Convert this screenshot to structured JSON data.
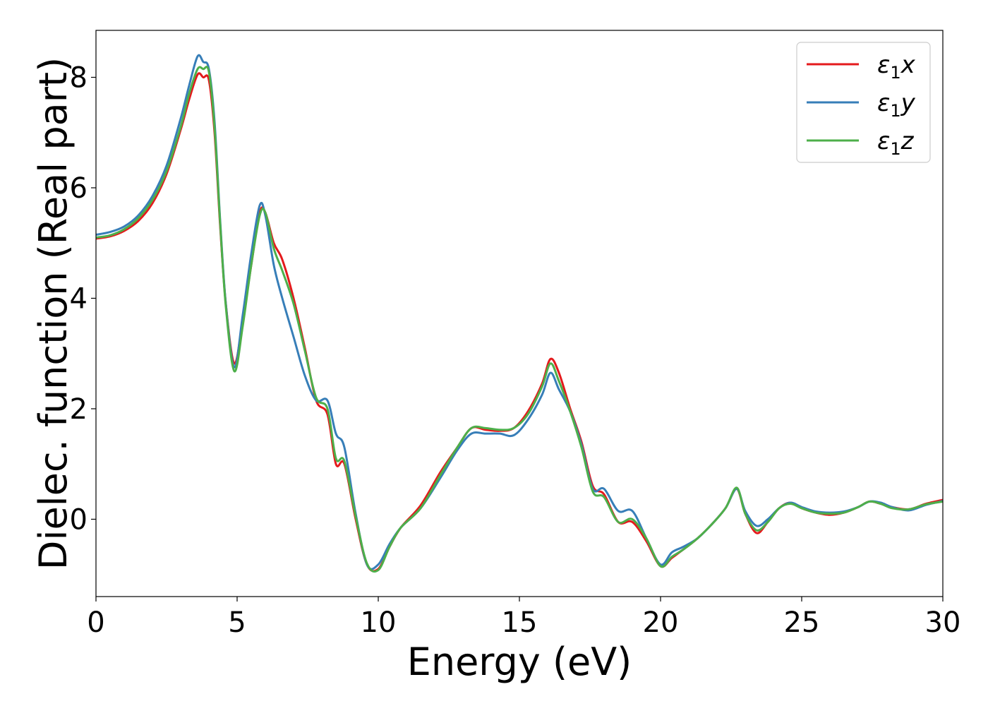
{
  "chart_data": {
    "type": "line",
    "title": "",
    "xlabel": "Energy (eV)",
    "ylabel": "Dielec. function (Real part)",
    "xlim": [
      0,
      30
    ],
    "ylim": [
      -1.4,
      8.85
    ],
    "xticks": [
      0,
      5,
      10,
      15,
      20,
      25,
      30
    ],
    "yticks": [
      0,
      2,
      4,
      6,
      8
    ],
    "grid": false,
    "legend_position": "top-right",
    "series": [
      {
        "name": "ε₁x",
        "label_main": "ε",
        "label_sub": "1",
        "label_var": "x",
        "color": "#e41a1c",
        "x": [
          0,
          0.5,
          1,
          1.5,
          2,
          2.5,
          3,
          3.3,
          3.6,
          3.8,
          4.0,
          4.2,
          4.4,
          4.6,
          4.9,
          5.2,
          5.5,
          5.8,
          6.0,
          6.3,
          6.6,
          7.0,
          7.4,
          7.8,
          8.2,
          8.5,
          8.8,
          9.2,
          9.6,
          10.0,
          10.4,
          10.8,
          11.5,
          12.2,
          12.8,
          13.3,
          13.8,
          14.3,
          14.8,
          15.3,
          15.8,
          16.1,
          16.4,
          16.8,
          17.2,
          17.6,
          18.0,
          18.5,
          19.0,
          19.5,
          20.0,
          20.4,
          20.8,
          21.3,
          21.8,
          22.3,
          22.7,
          23.0,
          23.4,
          23.8,
          24.2,
          24.6,
          25.0,
          25.5,
          26.0,
          26.5,
          27.0,
          27.4,
          27.8,
          28.2,
          28.8,
          29.4,
          30.0
        ],
        "values": [
          5.08,
          5.12,
          5.22,
          5.4,
          5.72,
          6.25,
          7.05,
          7.6,
          8.05,
          8.0,
          7.95,
          7.0,
          5.3,
          3.9,
          2.82,
          3.6,
          4.6,
          5.55,
          5.55,
          5.0,
          4.7,
          4.0,
          3.1,
          2.15,
          1.9,
          1.0,
          1.0,
          0.0,
          -0.82,
          -0.9,
          -0.5,
          -0.15,
          0.25,
          0.85,
          1.3,
          1.65,
          1.62,
          1.6,
          1.65,
          1.95,
          2.45,
          2.9,
          2.65,
          2.0,
          1.4,
          0.6,
          0.45,
          -0.05,
          -0.05,
          -0.4,
          -0.85,
          -0.7,
          -0.55,
          -0.35,
          -0.1,
          0.2,
          0.55,
          0.1,
          -0.25,
          -0.05,
          0.2,
          0.3,
          0.2,
          0.12,
          0.08,
          0.12,
          0.22,
          0.32,
          0.28,
          0.22,
          0.18,
          0.28,
          0.35
        ]
      },
      {
        "name": "ε₁y",
        "label_main": "ε",
        "label_sub": "1",
        "label_var": "y",
        "color": "#377eb8",
        "x": [
          0,
          0.5,
          1,
          1.5,
          2,
          2.5,
          3,
          3.3,
          3.6,
          3.8,
          4.0,
          4.2,
          4.4,
          4.6,
          4.9,
          5.2,
          5.5,
          5.8,
          6.0,
          6.3,
          6.6,
          7.0,
          7.4,
          7.8,
          8.2,
          8.5,
          8.8,
          9.2,
          9.6,
          10.0,
          10.4,
          10.8,
          11.5,
          12.2,
          12.8,
          13.3,
          13.8,
          14.3,
          14.8,
          15.3,
          15.8,
          16.1,
          16.4,
          16.8,
          17.2,
          17.6,
          18.0,
          18.5,
          19.0,
          19.5,
          20.0,
          20.4,
          20.8,
          21.3,
          21.8,
          22.3,
          22.7,
          23.0,
          23.4,
          23.8,
          24.2,
          24.6,
          25.0,
          25.5,
          26.0,
          26.5,
          27.0,
          27.4,
          27.8,
          28.2,
          28.8,
          29.4,
          30.0
        ],
        "values": [
          5.15,
          5.2,
          5.3,
          5.5,
          5.85,
          6.4,
          7.25,
          7.85,
          8.38,
          8.28,
          8.15,
          7.2,
          5.4,
          3.9,
          2.75,
          3.7,
          4.8,
          5.68,
          5.5,
          4.6,
          4.0,
          3.3,
          2.6,
          2.15,
          2.15,
          1.55,
          1.3,
          0.1,
          -0.82,
          -0.82,
          -0.45,
          -0.15,
          0.2,
          0.75,
          1.25,
          1.55,
          1.55,
          1.55,
          1.52,
          1.8,
          2.25,
          2.65,
          2.35,
          1.95,
          1.35,
          0.55,
          0.55,
          0.15,
          0.15,
          -0.35,
          -0.82,
          -0.6,
          -0.5,
          -0.35,
          -0.1,
          0.2,
          0.55,
          0.15,
          -0.12,
          0.0,
          0.2,
          0.3,
          0.22,
          0.14,
          0.12,
          0.14,
          0.22,
          0.32,
          0.3,
          0.22,
          0.16,
          0.26,
          0.33
        ]
      },
      {
        "name": "ε₁z",
        "label_main": "ε",
        "label_sub": "1",
        "label_var": "z",
        "color": "#4daf4a",
        "x": [
          0,
          0.5,
          1,
          1.5,
          2,
          2.5,
          3,
          3.3,
          3.6,
          3.8,
          4.0,
          4.2,
          4.4,
          4.6,
          4.9,
          5.2,
          5.5,
          5.8,
          6.0,
          6.3,
          6.6,
          7.0,
          7.4,
          7.8,
          8.2,
          8.5,
          8.8,
          9.2,
          9.6,
          10.0,
          10.4,
          10.8,
          11.5,
          12.2,
          12.8,
          13.3,
          13.8,
          14.3,
          14.8,
          15.3,
          15.8,
          16.1,
          16.4,
          16.8,
          17.2,
          17.6,
          18.0,
          18.5,
          19.0,
          19.5,
          20.0,
          20.4,
          20.8,
          21.3,
          21.8,
          22.3,
          22.7,
          23.0,
          23.4,
          23.8,
          24.2,
          24.6,
          25.0,
          25.5,
          26.0,
          26.5,
          27.0,
          27.4,
          27.8,
          28.2,
          28.8,
          29.4,
          30.0
        ],
        "values": [
          5.1,
          5.14,
          5.25,
          5.45,
          5.78,
          6.3,
          7.1,
          7.7,
          8.15,
          8.15,
          8.1,
          7.1,
          5.35,
          3.85,
          2.68,
          3.5,
          4.6,
          5.5,
          5.55,
          4.9,
          4.5,
          3.9,
          3.05,
          2.2,
          2.0,
          1.1,
          1.05,
          0.05,
          -0.8,
          -0.92,
          -0.5,
          -0.15,
          0.2,
          0.8,
          1.3,
          1.65,
          1.65,
          1.62,
          1.65,
          1.9,
          2.4,
          2.82,
          2.5,
          1.95,
          1.3,
          0.5,
          0.4,
          -0.05,
          0.0,
          -0.35,
          -0.85,
          -0.68,
          -0.55,
          -0.35,
          -0.1,
          0.2,
          0.57,
          0.1,
          -0.2,
          -0.05,
          0.2,
          0.28,
          0.2,
          0.12,
          0.1,
          0.12,
          0.22,
          0.32,
          0.28,
          0.2,
          0.18,
          0.27,
          0.32
        ]
      }
    ]
  }
}
